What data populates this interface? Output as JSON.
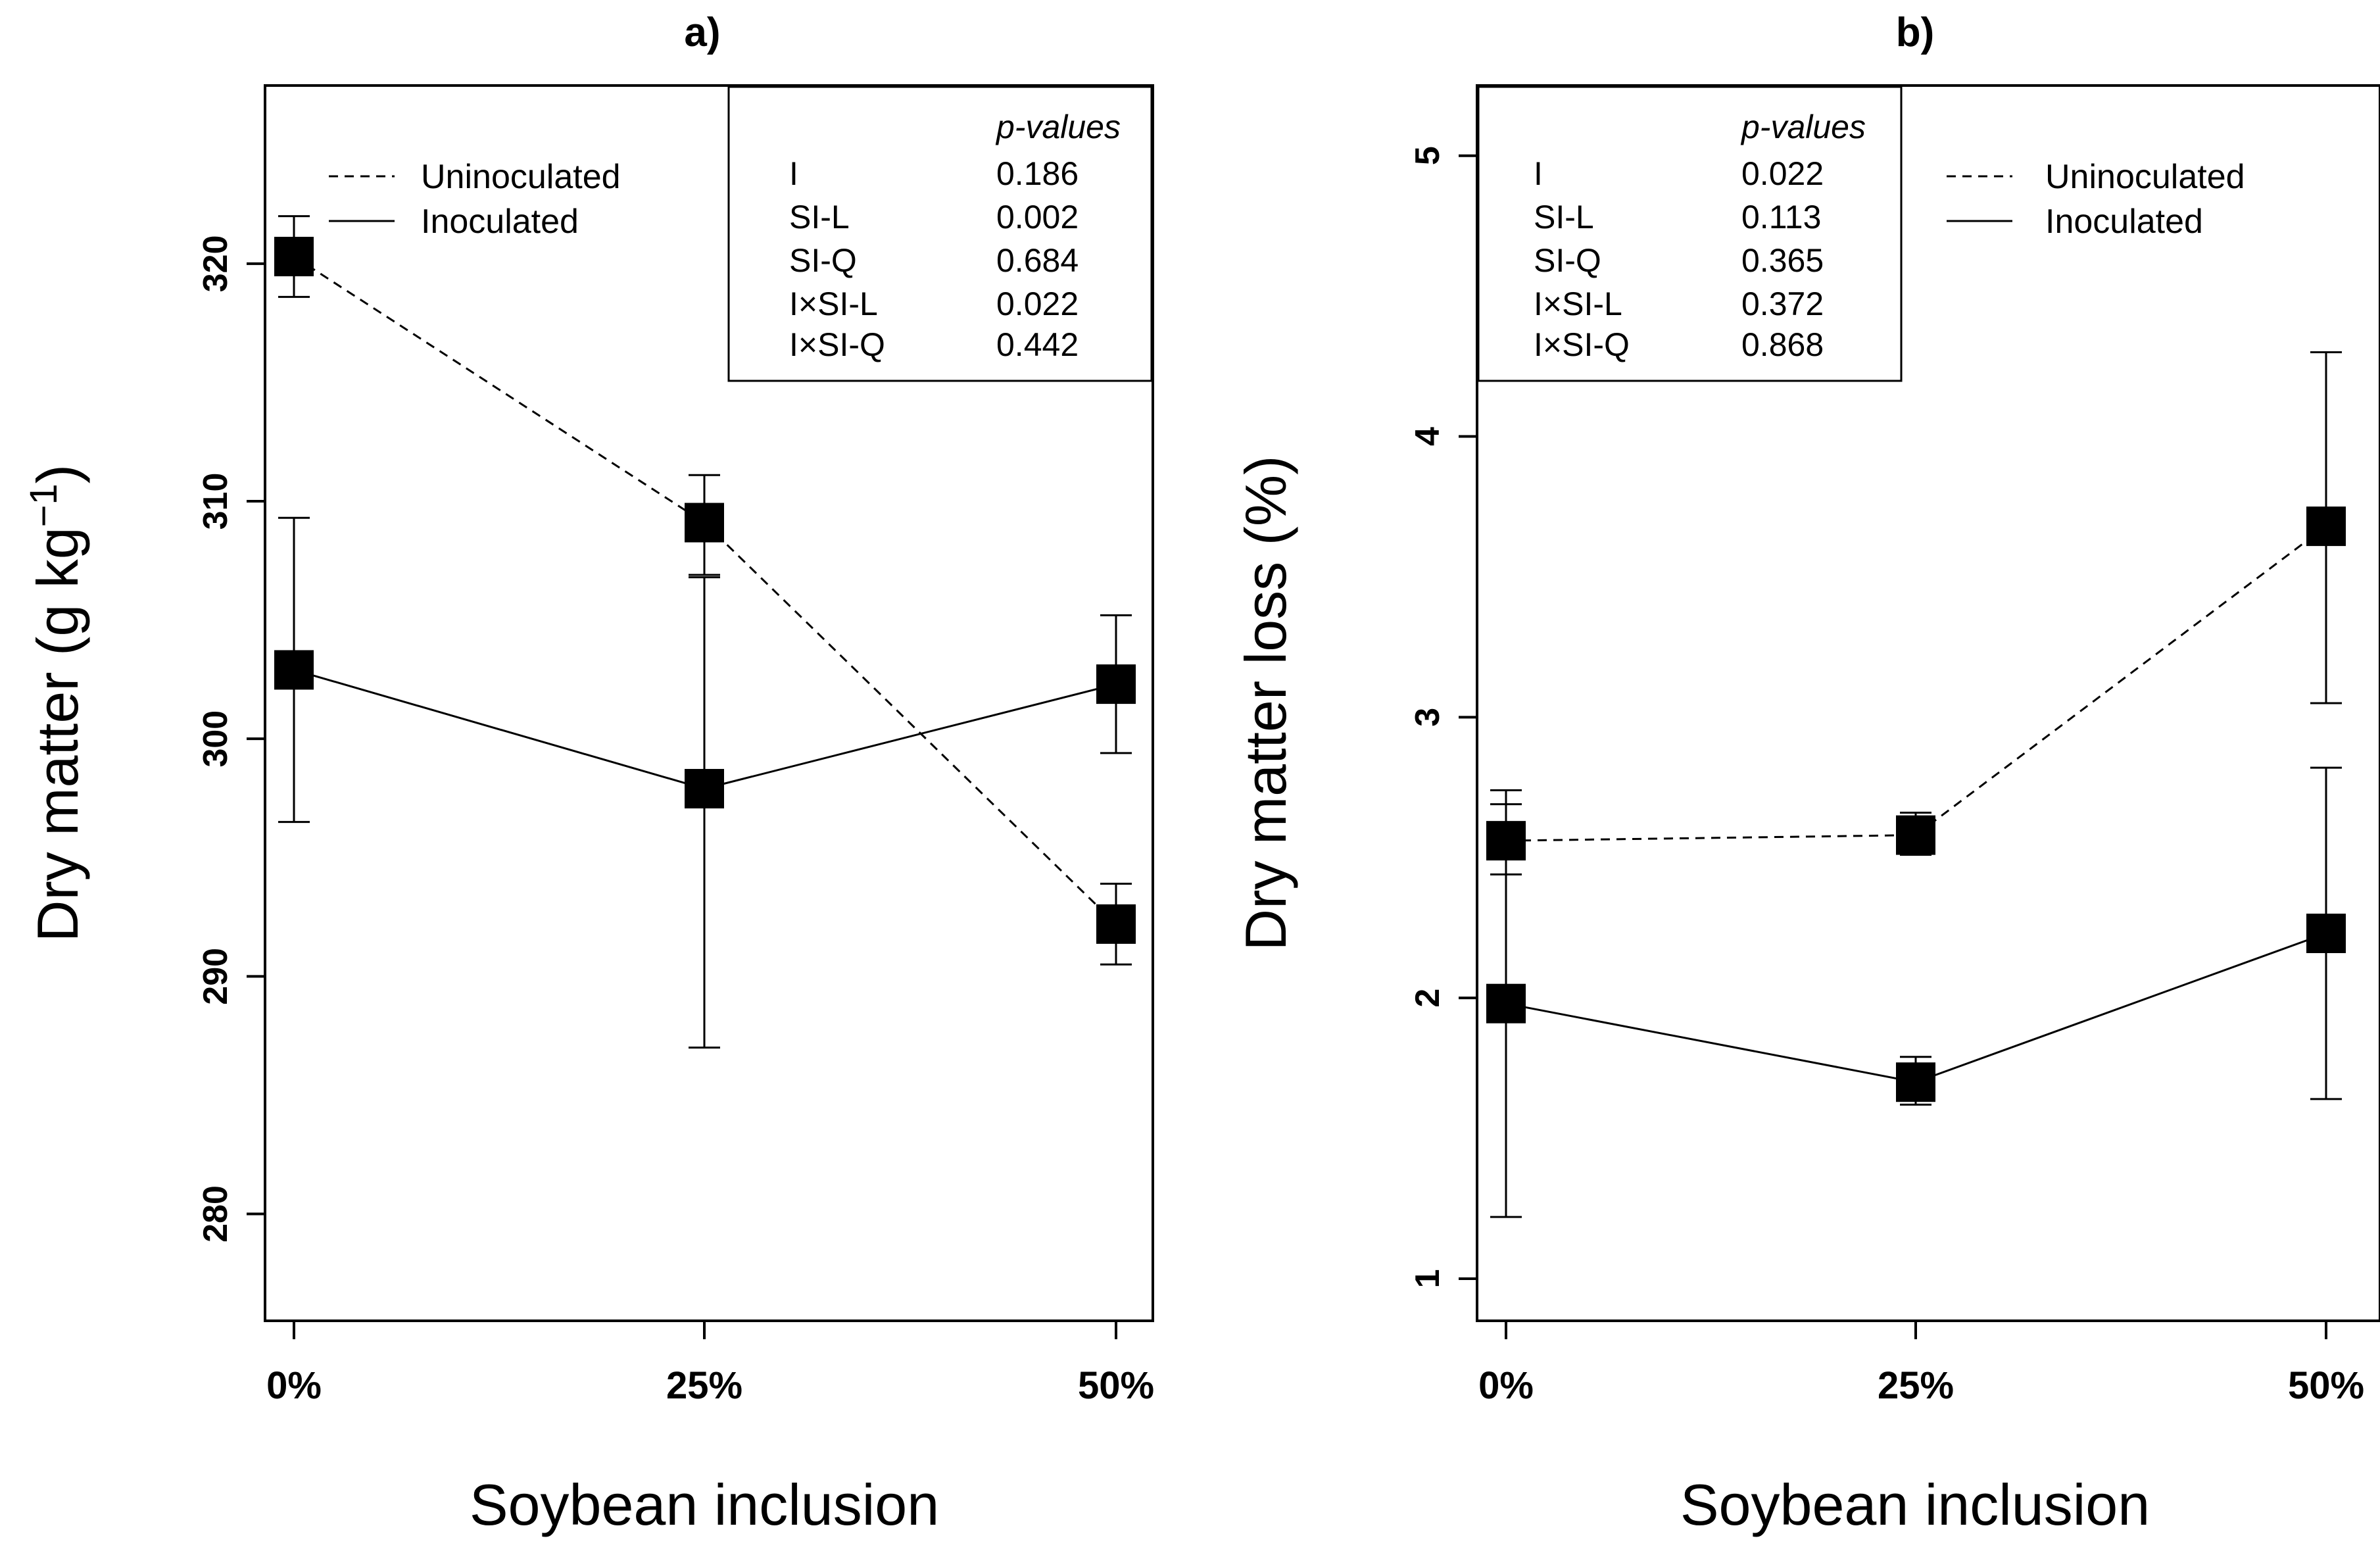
{
  "chart_data": [
    {
      "type": "line",
      "panel_title": "a)",
      "xlabel": "Soybean inclusion",
      "ylabel": "Dry matter (g kg",
      "ylabel_superscript": "−1",
      "ylabel_close": ")",
      "categories": [
        "0%",
        "25%",
        "50%"
      ],
      "ylim": [
        275.5,
        327.5
      ],
      "yticks": [
        "280",
        "290",
        "300",
        "310",
        "320"
      ],
      "series": [
        {
          "name": "Uninoculated",
          "linestyle": "dashed",
          "values": [
            320.3,
            309.1,
            292.2
          ],
          "err_low": [
            318.6,
            306.9,
            290.5
          ],
          "err_high": [
            322.0,
            311.1,
            293.9
          ]
        },
        {
          "name": "Inoculated",
          "linestyle": "solid",
          "values": [
            302.9,
            297.9,
            302.3
          ],
          "err_low": [
            296.5,
            287.0,
            299.4
          ],
          "err_high": [
            309.3,
            306.8,
            305.2
          ]
        }
      ],
      "legend": {
        "placement": "top-left",
        "entries": [
          "Uninoculated",
          "Inoculated"
        ]
      },
      "pvalues": {
        "header": "p-values",
        "rows": [
          {
            "term": "I",
            "value": "0.186"
          },
          {
            "term": "SI-L",
            "value": "0.002"
          },
          {
            "term": "SI-Q",
            "value": "0.684"
          },
          {
            "term": "I×SI-L",
            "value": "0.022"
          },
          {
            "term": "I×SI-Q",
            "value": "0.442"
          }
        ]
      }
    },
    {
      "type": "line",
      "panel_title": "b)",
      "xlabel": "Soybean inclusion",
      "ylabel": "Dry matter loss (%)",
      "ylabel_superscript": "",
      "ylabel_close": "",
      "categories": [
        "0%",
        "25%",
        "50%"
      ],
      "ylim": [
        0.85,
        5.25
      ],
      "yticks": [
        "1",
        "2",
        "3",
        "4",
        "5"
      ],
      "series": [
        {
          "name": "Uninoculated",
          "linestyle": "dashed",
          "values": [
            2.56,
            2.58,
            3.68
          ],
          "err_low": [
            2.44,
            2.51,
            3.05
          ],
          "err_high": [
            2.74,
            2.66,
            4.3
          ]
        },
        {
          "name": "Inoculated",
          "linestyle": "solid",
          "values": [
            1.98,
            1.7,
            2.23
          ],
          "err_low": [
            1.22,
            1.62,
            1.64
          ],
          "err_high": [
            2.69,
            1.79,
            2.82
          ]
        }
      ],
      "legend": {
        "placement": "top-right",
        "entries": [
          "Uninoculated",
          "Inoculated"
        ]
      },
      "pvalues": {
        "header": "p-values",
        "rows": [
          {
            "term": "I",
            "value": "0.022"
          },
          {
            "term": "SI-L",
            "value": "0.113"
          },
          {
            "term": "SI-Q",
            "value": "0.365"
          },
          {
            "term": "I×SI-L",
            "value": "0.372"
          },
          {
            "term": "I×SI-Q",
            "value": "0.868"
          }
        ]
      }
    }
  ]
}
